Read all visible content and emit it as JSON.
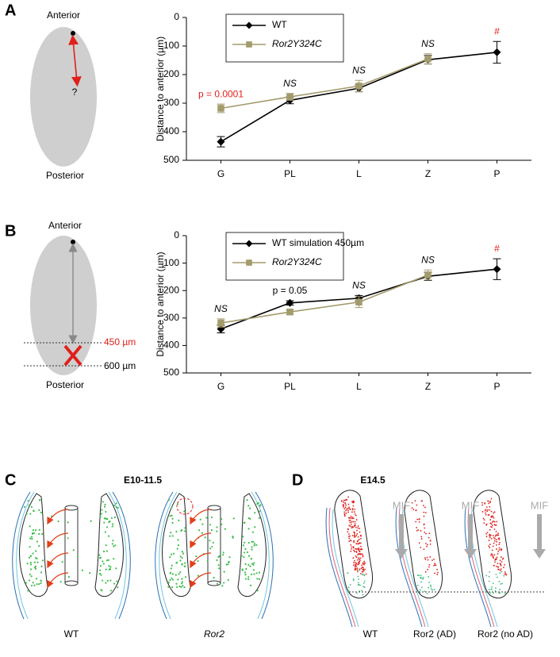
{
  "chart_data": [
    {
      "type": "line",
      "y_label": "Distance to anterior (µm)",
      "categories": [
        "G",
        "PL",
        "L",
        "Z",
        "P"
      ],
      "ylim": [
        0,
        500
      ],
      "y_reversed": true,
      "yticks": [
        0,
        100,
        200,
        300,
        400,
        500
      ],
      "legend": "upper left",
      "series": [
        {
          "name": "WT",
          "color": "#000000",
          "marker": "diamond",
          "values": [
            435,
            290,
            248,
            148,
            122
          ],
          "errors": [
            18,
            12,
            12,
            15,
            38
          ]
        },
        {
          "name": "Ror2Y324C",
          "color": "#a39b6c",
          "marker": "square",
          "values": [
            318,
            278,
            240,
            145,
            null
          ],
          "errors": [
            15,
            12,
            20,
            18,
            null
          ]
        }
      ],
      "annotations": [
        "p = 0.0001",
        "NS",
        "NS",
        "NS",
        "#"
      ],
      "annotation_colors": [
        "#e0201b",
        "#000000",
        "#000000",
        "#000000",
        "#e0201b"
      ],
      "annotation_italic": [
        false,
        true,
        true,
        true,
        false
      ]
    },
    {
      "type": "line",
      "y_label": "Distance to anterior (µm)",
      "categories": [
        "G",
        "PL",
        "L",
        "Z",
        "P"
      ],
      "ylim": [
        0,
        500
      ],
      "y_reversed": true,
      "yticks": [
        0,
        100,
        200,
        300,
        400,
        500
      ],
      "legend": "upper left",
      "series": [
        {
          "name": "WT simulation 450µm",
          "color": "#000000",
          "marker": "diamond",
          "values": [
            340,
            245,
            228,
            148,
            122
          ],
          "errors": [
            14,
            8,
            10,
            15,
            38
          ]
        },
        {
          "name": "Ror2Y324C",
          "color": "#a39b6c",
          "marker": "square",
          "values": [
            318,
            278,
            242,
            143,
            null
          ],
          "errors": [
            15,
            8,
            20,
            18,
            null
          ]
        }
      ],
      "annotations": [
        "NS",
        "p = 0.05",
        "NS",
        "NS",
        "#"
      ],
      "annotation_colors": [
        "#000000",
        "#000000",
        "#000000",
        "#000000",
        "#e0201b"
      ],
      "annotation_italic": [
        true,
        false,
        true,
        true,
        false
      ]
    }
  ],
  "panel_labels": [
    "A",
    "B",
    "C",
    "D"
  ],
  "panel_a": {
    "top": "Anterior",
    "question": "?",
    "bottom": "Posterior"
  },
  "panel_b": {
    "top": "Anterior",
    "cut_450": "450 µm",
    "cut_600": "600 µm",
    "bottom": "Posterior"
  },
  "panel_c": {
    "stage": "E10-11.5",
    "labels": [
      "WT",
      "Ror2"
    ]
  },
  "panel_d": {
    "stage": "E14.5",
    "arrow_labels": [
      "MIF",
      "MIF",
      "MIF"
    ],
    "labels": [
      "WT",
      "Ror2 (AD)",
      "Ror2 (no AD)"
    ]
  }
}
